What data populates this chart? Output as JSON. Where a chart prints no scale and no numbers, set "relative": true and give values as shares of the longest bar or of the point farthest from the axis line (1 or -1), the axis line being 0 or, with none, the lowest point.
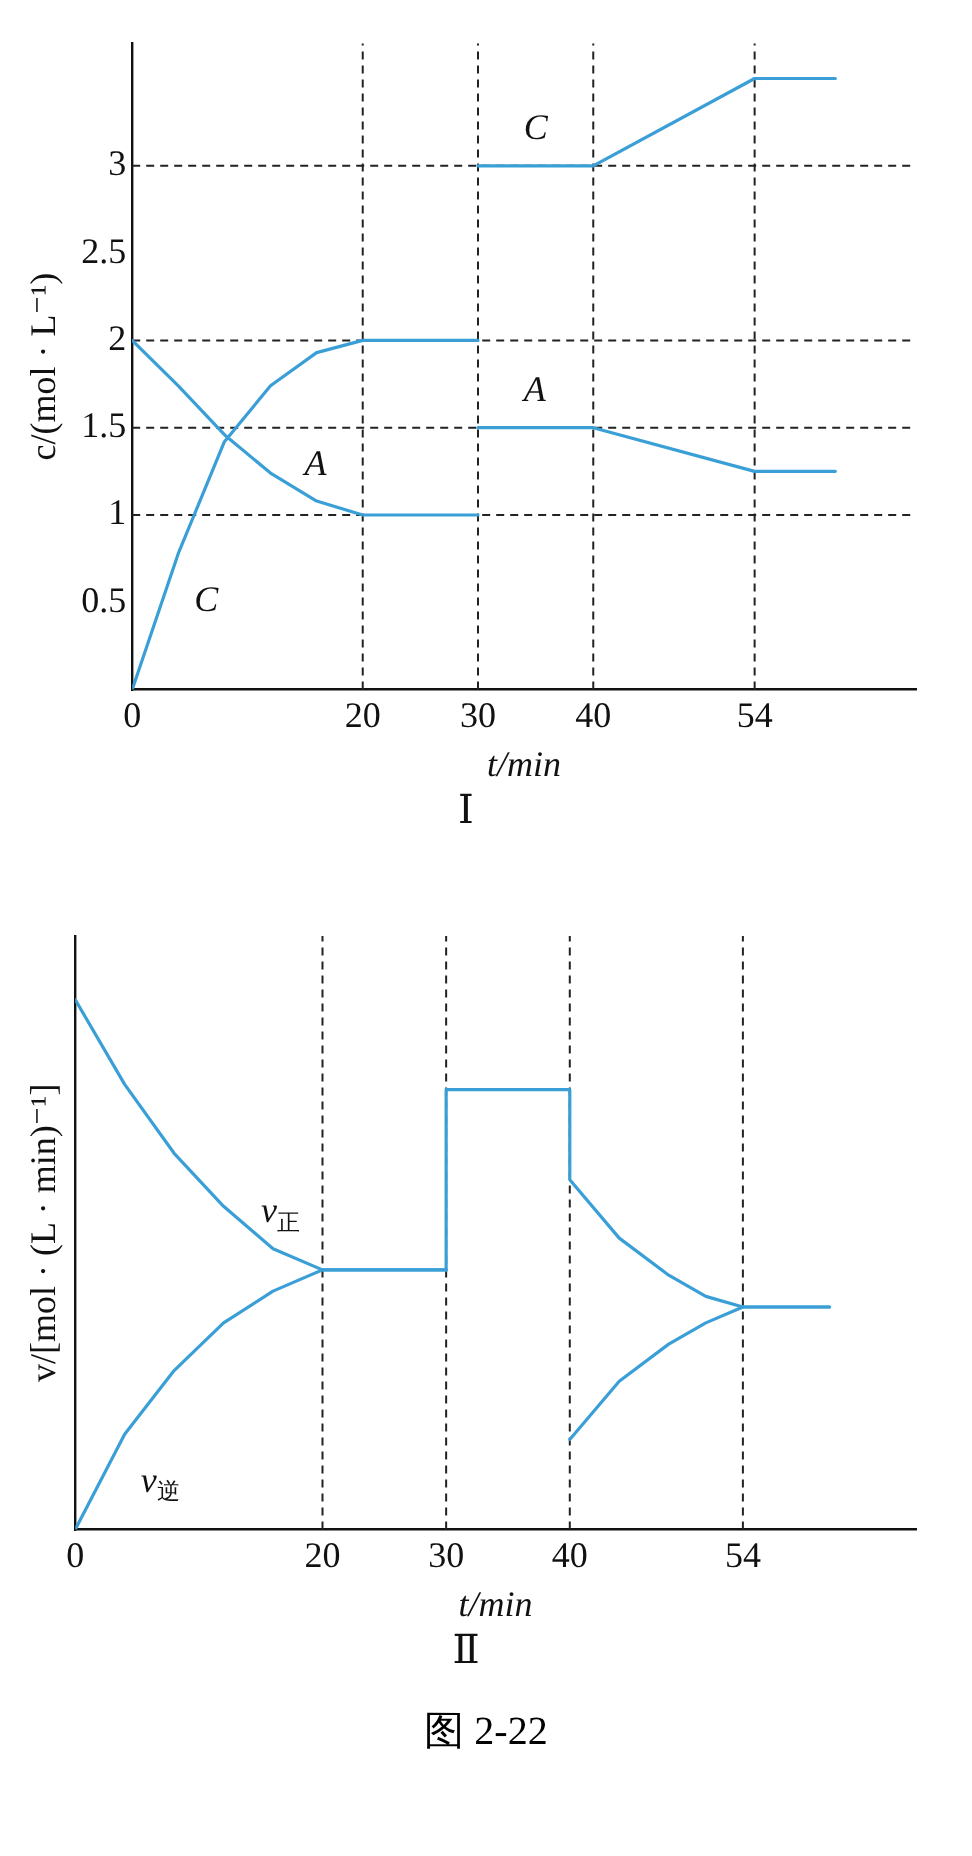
{
  "chart_data": [
    {
      "type": "line",
      "title": "Ⅰ",
      "xlabel": "t/min",
      "ylabel": "c/(mol · L⁻¹)",
      "xlim": [
        0,
        68
      ],
      "xticks": [
        0,
        20,
        30,
        40,
        54
      ],
      "ylim": [
        0,
        3.7
      ],
      "yticks": [
        0.5,
        1.0,
        1.5,
        2.0,
        2.5,
        3.0
      ],
      "grid": false,
      "legend": false,
      "marker": "none",
      "line_style": "solid",
      "series": [
        {
          "name": "A",
          "color": "#3a9fd6",
          "x": [
            0,
            4,
            8,
            12,
            16,
            20,
            30
          ],
          "values": [
            2.0,
            1.74,
            1.46,
            1.24,
            1.08,
            1.0,
            1.0
          ]
        },
        {
          "name": "C",
          "color": "#3a9fd6",
          "x": [
            0,
            4,
            8,
            12,
            16,
            20,
            30
          ],
          "values": [
            0,
            0.78,
            1.42,
            1.74,
            1.93,
            2.0,
            2.0
          ]
        },
        {
          "name": "A",
          "color": "#3a9fd6",
          "x": [
            30,
            40,
            54,
            61
          ],
          "values": [
            1.5,
            1.5,
            1.25,
            1.25
          ]
        },
        {
          "name": "C",
          "color": "#3a9fd6",
          "x": [
            30,
            40,
            54,
            61
          ],
          "values": [
            3.0,
            3.0,
            3.5,
            3.5
          ]
        }
      ],
      "ref_lines": [
        {
          "axis": "x",
          "value": 20,
          "line_style": "dashed",
          "color": "#222222"
        },
        {
          "axis": "x",
          "value": 30,
          "line_style": "dashed",
          "color": "#222222"
        },
        {
          "axis": "x",
          "value": 40,
          "line_style": "dashed",
          "color": "#222222"
        },
        {
          "axis": "x",
          "value": 54,
          "line_style": "dashed",
          "color": "#222222"
        },
        {
          "axis": "y",
          "value": 1.0,
          "line_style": "dashed",
          "color": "#222222"
        },
        {
          "axis": "y",
          "value": 1.5,
          "line_style": "dashed",
          "color": "#222222"
        },
        {
          "axis": "y",
          "value": 2.0,
          "line_style": "dashed",
          "color": "#222222"
        },
        {
          "axis": "y",
          "value": 3.0,
          "line_style": "dashed",
          "color": "#222222"
        }
      ]
    },
    {
      "type": "line",
      "title": "Ⅱ",
      "xlabel": "t/min",
      "ylabel": "v/[mol · (L · min)⁻¹]",
      "relative": true,
      "xlim": [
        0,
        68
      ],
      "xticks": [
        0,
        20,
        30,
        40,
        54
      ],
      "grid": false,
      "legend": false,
      "marker": "none",
      "line_style": "solid",
      "series": [
        {
          "name": "v$_{正}$",
          "color": "#3a9fd6",
          "x": [
            0,
            4,
            8,
            12,
            16,
            20,
            30
          ],
          "values": [
            1,
            0.84,
            0.71,
            0.61,
            0.53,
            0.49,
            0.49
          ]
        },
        {
          "name": "v$_{逆}$",
          "color": "#3a9fd6",
          "x": [
            0,
            4,
            8,
            12,
            16,
            20,
            30
          ],
          "values": [
            0,
            0.18,
            0.3,
            0.39,
            0.45,
            0.49,
            0.49
          ]
        },
        {
          "color": "#3a9fd6",
          "x": [
            30,
            30,
            40,
            40,
            44,
            48,
            51,
            54,
            61
          ],
          "values": [
            0.49,
            0.83,
            0.83,
            0.66,
            0.55,
            0.48,
            0.44,
            0.42,
            0.42
          ]
        },
        {
          "color": "#3a9fd6",
          "x": [
            40,
            44,
            48,
            51,
            54,
            61
          ],
          "values": [
            0.17,
            0.28,
            0.35,
            0.39,
            0.42,
            0.42
          ]
        }
      ],
      "ref_lines": [
        {
          "axis": "x",
          "value": 20,
          "line_style": "dashed",
          "color": "#222222"
        },
        {
          "axis": "x",
          "value": 30,
          "line_style": "dashed",
          "color": "#222222"
        },
        {
          "axis": "x",
          "value": 40,
          "line_style": "dashed",
          "color": "#222222"
        },
        {
          "axis": "x",
          "value": 54,
          "line_style": "dashed",
          "color": "#222222"
        }
      ],
      "annotations": [
        "图 2-22"
      ]
    }
  ]
}
